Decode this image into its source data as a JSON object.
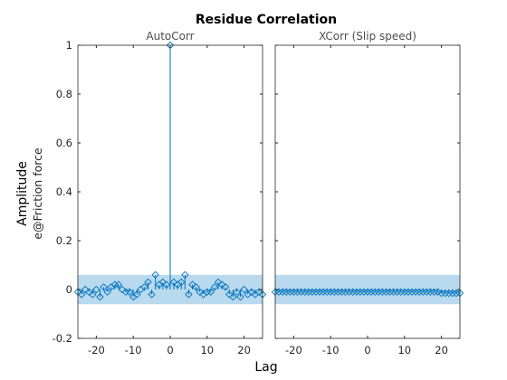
{
  "figure": {
    "title": "Residue Correlation",
    "xlabel": "Lag",
    "ylabel_line1": "Amplitude",
    "ylabel_line2": "e@Friction force"
  },
  "colors": {
    "stem": "#0072BD",
    "band": "#B9D9EE",
    "axis": "#262626",
    "text": "#262626"
  },
  "chart_data": [
    {
      "type": "stem",
      "title": "AutoCorr",
      "xlim": [
        -25,
        25
      ],
      "ylim": [
        -0.2,
        1
      ],
      "xticks": [
        -20,
        -10,
        0,
        10,
        20
      ],
      "xtick_labels": [
        "-20",
        "-10",
        "0",
        "10",
        "20"
      ],
      "yticks": [
        -0.2,
        0,
        0.2,
        0.4,
        0.6,
        0.8,
        1
      ],
      "ytick_labels": [
        "-0.2",
        "0",
        "0.2",
        "0.4",
        "0.6",
        "0.8",
        "1"
      ],
      "confidence_band": [
        -0.06,
        0.06
      ],
      "x": [
        -25,
        -24,
        -23,
        -22,
        -21,
        -20,
        -19,
        -18,
        -17,
        -16,
        -15,
        -14,
        -13,
        -12,
        -11,
        -10,
        -9,
        -8,
        -7,
        -6,
        -5,
        -4,
        -3,
        -2,
        -1,
        0,
        1,
        2,
        3,
        4,
        5,
        6,
        7,
        8,
        9,
        10,
        11,
        12,
        13,
        14,
        15,
        16,
        17,
        18,
        19,
        20,
        21,
        22,
        23,
        24,
        25
      ],
      "values": [
        -0.01,
        -0.02,
        0.0,
        -0.01,
        -0.02,
        0.0,
        -0.03,
        0.01,
        -0.01,
        0.01,
        0.02,
        0.02,
        0.0,
        -0.01,
        -0.01,
        -0.03,
        -0.02,
        0.0,
        0.01,
        0.03,
        -0.02,
        0.06,
        0.02,
        0.03,
        0.02,
        1.0,
        0.03,
        0.02,
        0.03,
        0.06,
        -0.02,
        0.02,
        0.01,
        -0.01,
        -0.02,
        -0.01,
        -0.01,
        0.01,
        0.03,
        0.02,
        0.01,
        -0.02,
        -0.03,
        -0.01,
        -0.03,
        0.0,
        -0.02,
        -0.01,
        -0.02,
        -0.01,
        -0.02
      ]
    },
    {
      "type": "stem",
      "title": "XCorr (Slip speed)",
      "xlim": [
        -25,
        25
      ],
      "ylim": [
        -0.2,
        1
      ],
      "xticks": [
        -20,
        -10,
        0,
        10,
        20
      ],
      "xtick_labels": [
        "-20",
        "-10",
        "0",
        "10",
        "20"
      ],
      "confidence_band": [
        -0.06,
        0.06
      ],
      "x": [
        -25,
        -24,
        -23,
        -22,
        -21,
        -20,
        -19,
        -18,
        -17,
        -16,
        -15,
        -14,
        -13,
        -12,
        -11,
        -10,
        -9,
        -8,
        -7,
        -6,
        -5,
        -4,
        -3,
        -2,
        -1,
        0,
        1,
        2,
        3,
        4,
        5,
        6,
        7,
        8,
        9,
        10,
        11,
        12,
        13,
        14,
        15,
        16,
        17,
        18,
        19,
        20,
        21,
        22,
        23,
        24,
        25
      ],
      "values": [
        -0.01,
        -0.01,
        -0.01,
        -0.01,
        -0.01,
        -0.01,
        -0.01,
        -0.01,
        -0.01,
        -0.01,
        -0.01,
        -0.01,
        -0.01,
        -0.01,
        -0.01,
        -0.01,
        -0.01,
        -0.01,
        -0.01,
        -0.01,
        -0.01,
        -0.01,
        -0.01,
        -0.01,
        -0.01,
        -0.01,
        -0.01,
        -0.01,
        -0.01,
        -0.01,
        -0.01,
        -0.01,
        -0.01,
        -0.01,
        -0.01,
        -0.01,
        -0.01,
        -0.01,
        -0.01,
        -0.01,
        -0.01,
        -0.01,
        -0.01,
        -0.01,
        -0.01,
        -0.015,
        -0.015,
        -0.015,
        -0.015,
        -0.015,
        -0.015
      ]
    }
  ]
}
